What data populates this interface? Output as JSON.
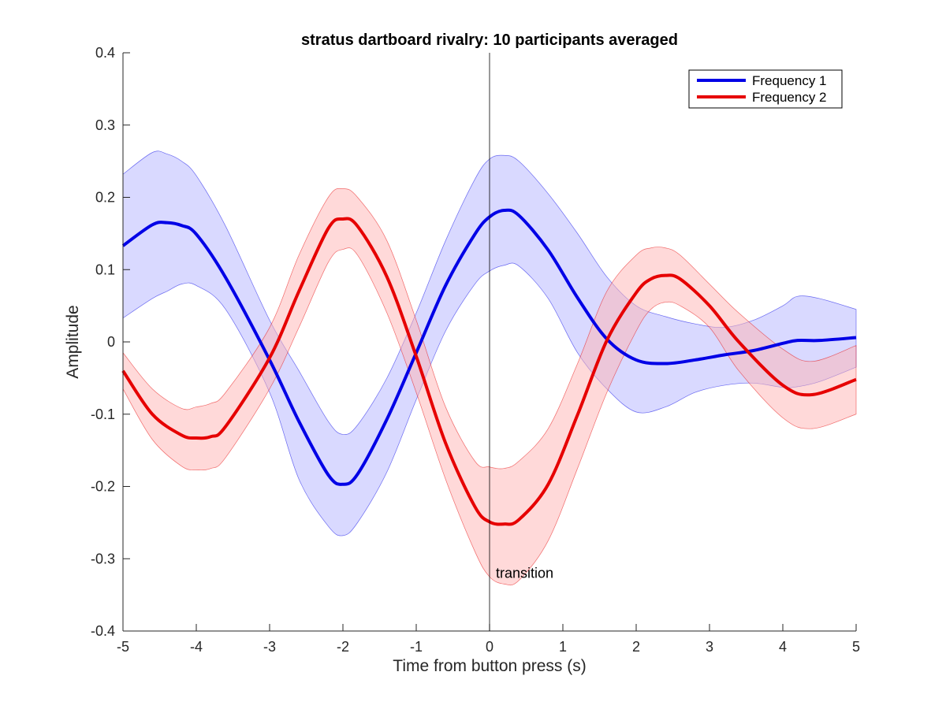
{
  "chart_data": {
    "type": "line",
    "title": "stratus dartboard rivalry: 10 participants averaged",
    "xlabel": "Time from button press (s)",
    "ylabel": "Amplitude",
    "xlim": [
      -5,
      5
    ],
    "ylim": [
      -0.4,
      0.4
    ],
    "xticks": [
      "-5",
      "-4",
      "-3",
      "-2",
      "-1",
      "0",
      "1",
      "2",
      "3",
      "4",
      "5"
    ],
    "yticks": [
      "-0.4",
      "-0.3",
      "-0.2",
      "-0.1",
      "0",
      "0.1",
      "0.2",
      "0.3",
      "0.4"
    ],
    "grid": false,
    "legend_position": "top-right",
    "annotation": {
      "text": "transition",
      "x": 0,
      "y": -0.32
    },
    "vertical_line_x": 0,
    "series": [
      {
        "name": "Frequency 1",
        "color": "#0000e6",
        "band_color": "#b3b3ff",
        "x": [
          -5,
          -4.6,
          -4.4,
          -4.2,
          -4,
          -3.6,
          -3,
          -2.6,
          -2.2,
          -2,
          -1.8,
          -1.4,
          -1,
          -0.6,
          -0.2,
          0,
          0.2,
          0.4,
          0.8,
          1.2,
          1.6,
          2,
          2.4,
          2.8,
          3.2,
          3.6,
          4,
          4.2,
          4.5,
          5
        ],
        "y": [
          0.133,
          0.162,
          0.165,
          0.161,
          0.149,
          0.089,
          -0.025,
          -0.11,
          -0.184,
          -0.197,
          -0.183,
          -0.107,
          -0.015,
          0.078,
          0.149,
          0.173,
          0.182,
          0.175,
          0.127,
          0.061,
          0.004,
          -0.025,
          -0.03,
          -0.025,
          -0.018,
          -0.012,
          -0.002,
          0.002,
          0.002,
          0.006
        ],
        "upper": [
          0.232,
          0.262,
          0.26,
          0.25,
          0.23,
          0.16,
          0.03,
          -0.04,
          -0.11,
          -0.128,
          -0.115,
          -0.05,
          0.04,
          0.14,
          0.225,
          0.253,
          0.258,
          0.25,
          0.205,
          0.15,
          0.09,
          0.05,
          0.035,
          0.025,
          0.02,
          0.03,
          0.05,
          0.063,
          0.06,
          0.045
        ],
        "lower": [
          0.033,
          0.06,
          0.07,
          0.08,
          0.078,
          0.045,
          -0.07,
          -0.19,
          -0.255,
          -0.268,
          -0.25,
          -0.18,
          -0.08,
          0.015,
          0.08,
          0.098,
          0.106,
          0.105,
          0.06,
          -0.015,
          -0.065,
          -0.097,
          -0.09,
          -0.07,
          -0.06,
          -0.057,
          -0.063,
          -0.062,
          -0.055,
          -0.035
        ]
      },
      {
        "name": "Frequency 2",
        "color": "#e60000",
        "band_color": "#ffb3b3",
        "x": [
          -5,
          -4.6,
          -4.2,
          -4,
          -3.8,
          -3.6,
          -3,
          -2.6,
          -2.2,
          -2,
          -1.8,
          -1.4,
          -1,
          -0.6,
          -0.2,
          0,
          0.2,
          0.4,
          0.8,
          1.2,
          1.6,
          2,
          2.2,
          2.4,
          2.6,
          3,
          3.4,
          4,
          4.4,
          5
        ],
        "y": [
          -0.04,
          -0.1,
          -0.129,
          -0.133,
          -0.131,
          -0.117,
          -0.022,
          0.07,
          0.157,
          0.17,
          0.16,
          0.09,
          -0.02,
          -0.14,
          -0.228,
          -0.249,
          -0.252,
          -0.246,
          -0.197,
          -0.101,
          0.002,
          0.068,
          0.087,
          0.092,
          0.087,
          0.05,
          0.0,
          -0.06,
          -0.073,
          -0.052
        ],
        "upper": [
          -0.015,
          -0.065,
          -0.092,
          -0.09,
          -0.085,
          -0.07,
          0.02,
          0.12,
          0.2,
          0.212,
          0.2,
          0.14,
          0.03,
          -0.09,
          -0.165,
          -0.173,
          -0.175,
          -0.165,
          -0.12,
          -0.03,
          0.07,
          0.12,
          0.13,
          0.13,
          0.12,
          0.08,
          0.04,
          -0.01,
          -0.027,
          -0.005
        ],
        "lower": [
          -0.065,
          -0.135,
          -0.172,
          -0.177,
          -0.175,
          -0.16,
          -0.065,
          0.02,
          0.11,
          0.128,
          0.12,
          0.04,
          -0.07,
          -0.19,
          -0.29,
          -0.325,
          -0.335,
          -0.33,
          -0.275,
          -0.175,
          -0.07,
          0.015,
          0.045,
          0.055,
          0.05,
          0.02,
          -0.04,
          -0.105,
          -0.12,
          -0.1
        ]
      }
    ]
  }
}
